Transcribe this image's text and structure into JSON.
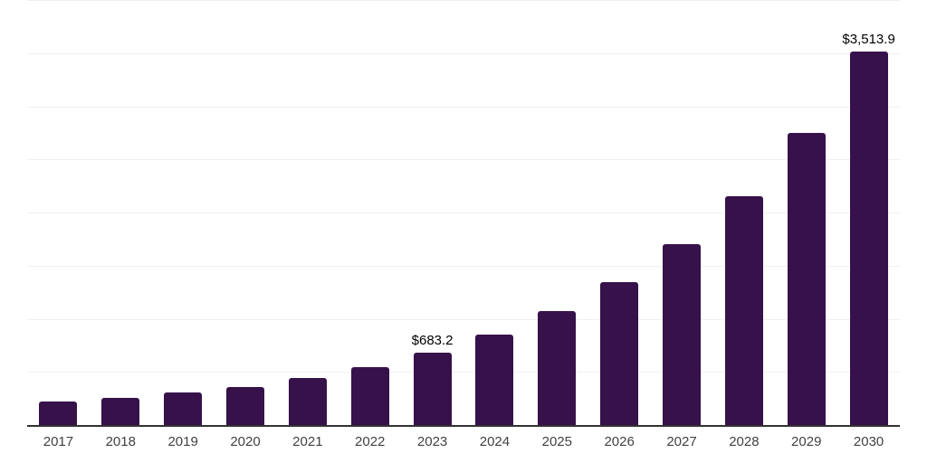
{
  "chart_data": {
    "type": "bar",
    "title": "",
    "xlabel": "",
    "ylabel": "",
    "categories": [
      "2017",
      "2018",
      "2019",
      "2020",
      "2021",
      "2022",
      "2023",
      "2024",
      "2025",
      "2026",
      "2027",
      "2028",
      "2029",
      "2030"
    ],
    "values": [
      220,
      255,
      305,
      360,
      440,
      545,
      683.2,
      855,
      1075,
      1345,
      1700,
      2155,
      2745,
      3513.9
    ],
    "data_labels": [
      "",
      "",
      "",
      "",
      "",
      "",
      "$683.2",
      "",
      "",
      "",
      "",
      "",
      "",
      "$3,513.9"
    ],
    "ylim": [
      0,
      4000
    ],
    "gridline_step": 500,
    "grid": true,
    "legend": false,
    "y_tick_labels_visible": false
  },
  "colors": {
    "bar": "#36114A",
    "background": "#ffffff",
    "gridline": "#f0f0f0",
    "axis_line": "#333333",
    "tick_label": "#424242",
    "data_label": "#000000"
  }
}
